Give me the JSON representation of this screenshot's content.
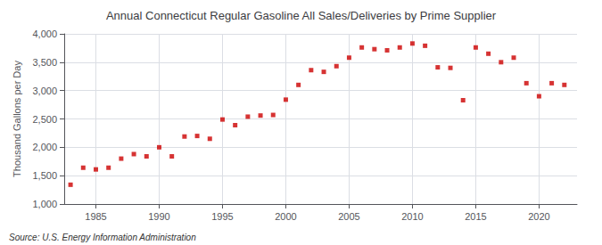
{
  "chart_data": {
    "type": "scatter",
    "title": "Annual Connecticut Regular Gasoline All Sales/Deliveries by Prime Supplier",
    "ylabel": "Thousand Gallons per Day",
    "annotations": [
      "Source: U.S. Energy Information Administration"
    ],
    "x": [
      1983,
      1984,
      1985,
      1986,
      1987,
      1988,
      1989,
      1990,
      1991,
      1992,
      1993,
      1994,
      1995,
      1996,
      1997,
      1998,
      1999,
      2000,
      2001,
      2002,
      2003,
      2004,
      2005,
      2006,
      2007,
      2008,
      2009,
      2010,
      2011,
      2012,
      2013,
      2014,
      2015,
      2016,
      2017,
      2018,
      2019,
      2020,
      2021,
      2022
    ],
    "values": [
      1340,
      1640,
      1610,
      1640,
      1800,
      1880,
      1840,
      2000,
      1840,
      2190,
      2200,
      2150,
      2490,
      2390,
      2540,
      2560,
      2570,
      2840,
      3100,
      3360,
      3330,
      3430,
      3580,
      3760,
      3730,
      3710,
      3760,
      3830,
      3790,
      3410,
      3400,
      2830,
      3760,
      3650,
      3500,
      3580,
      3130,
      2900,
      3130,
      3100
    ],
    "color": "#cc0000",
    "marker": "square",
    "xlim": [
      1982.5,
      2023
    ],
    "xticks": [
      1985,
      1990,
      1995,
      2000,
      2005,
      2010,
      2015,
      2020
    ],
    "ylim": [
      1000,
      4000
    ],
    "yticks": [
      {
        "value": 1000,
        "label": "1,000"
      },
      {
        "value": 1500,
        "label": "1,500"
      },
      {
        "value": 2000,
        "label": "2,000"
      },
      {
        "value": 2500,
        "label": "2,500"
      },
      {
        "value": 3000,
        "label": "3,000"
      },
      {
        "value": 3500,
        "label": "3,500"
      },
      {
        "value": 4000,
        "label": "4,000"
      }
    ],
    "grid": true
  }
}
